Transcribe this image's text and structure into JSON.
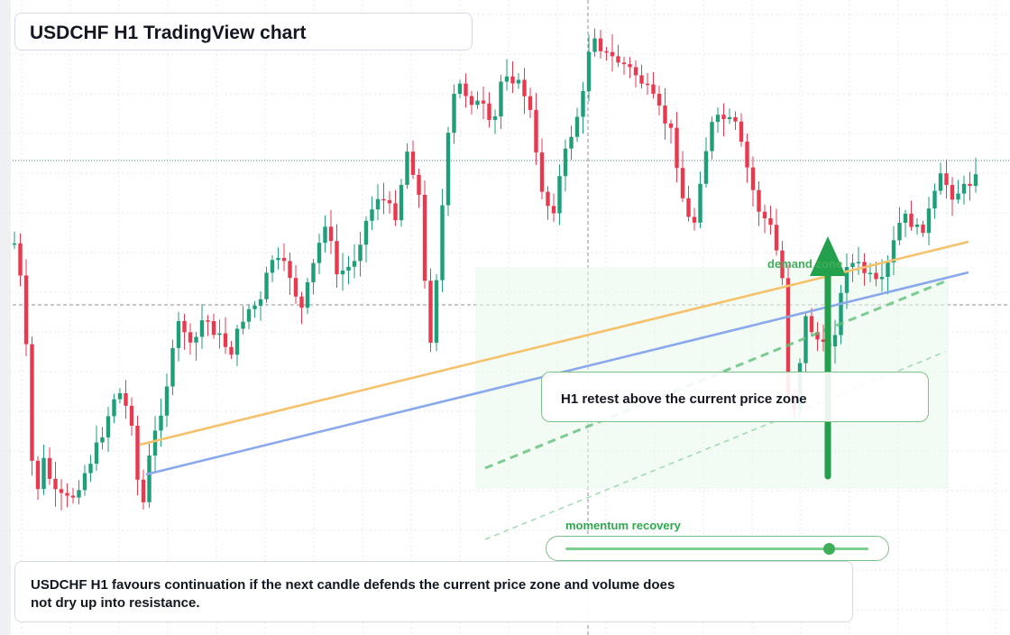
{
  "title": "USDCHF H1 TradingView chart",
  "zone_label": "demand zone",
  "retest_note": "H1 retest above the current price zone",
  "slider_label": "momentum recovery",
  "slider_value": 0.87,
  "caption": "USDCHF H1 favours continuation if the next candle defends the current price zone and volume does not dry up into resistance.",
  "colors": {
    "bull": "#1f9e7a",
    "bear": "#e8394f",
    "orange_line": "#f5c26b",
    "blue_line": "#8aa8ec",
    "green_accent": "#22a04b",
    "zone_fill": "#eaf7ec"
  },
  "icons": {
    "arrow": "arrow-up-icon"
  },
  "chart_data": {
    "type": "candlestick",
    "title": "USDCHF H1 TradingView chart",
    "timeframe": "H1",
    "x_axis": "time (unlabeled)",
    "y_axis": "price (unlabeled)",
    "grid": true,
    "candle_count": 165,
    "trend": "rising overall with pullback then recovery",
    "overlays": [
      {
        "kind": "trendline",
        "color": "orange"
      },
      {
        "kind": "trendline",
        "color": "blue"
      },
      {
        "kind": "channel",
        "style": "dashed",
        "color": "green"
      },
      {
        "kind": "zone",
        "label": "demand zone"
      },
      {
        "kind": "arrow",
        "direction": "up",
        "color": "green"
      }
    ]
  }
}
